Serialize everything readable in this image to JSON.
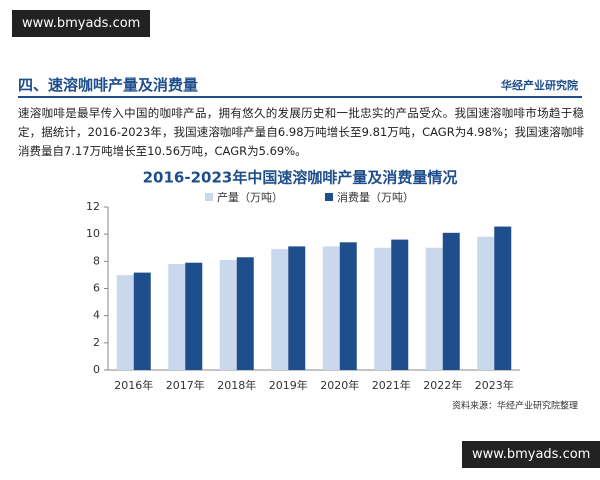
{
  "watermark_top": "www.bmyads.com",
  "watermark_bottom": "www.bmyads.com",
  "header": {
    "title": "四、速溶咖啡产量及消费量",
    "brand": "华经产业研究院"
  },
  "paragraph": "速溶咖啡是最早传入中国的咖啡产品，拥有悠久的发展历史和一批忠实的产品受众。我国速溶咖啡市场趋于稳定，据统计，2016-2023年，我国速溶咖啡产量自6.98万吨增长至9.81万吨，CAGR为4.98%；我国速溶咖啡消费量自7.17万吨增长至10.56万吨，CAGR为5.69%。",
  "chart_data": {
    "type": "bar",
    "title": "2016-2023年中国速溶咖啡产量及消费量情况",
    "categories": [
      "2016年",
      "2017年",
      "2018年",
      "2019年",
      "2020年",
      "2021年",
      "2022年",
      "2023年"
    ],
    "series": [
      {
        "name": "产量（万吨）",
        "color": "#c9d8ec",
        "values": [
          6.98,
          7.8,
          8.1,
          8.9,
          9.1,
          9.0,
          9.0,
          9.81
        ]
      },
      {
        "name": "消费量（万吨）",
        "color": "#1f4e8c",
        "values": [
          7.17,
          7.9,
          8.3,
          9.1,
          9.4,
          9.6,
          10.1,
          10.56
        ]
      }
    ],
    "ylim": [
      0,
      12
    ],
    "yticks": [
      0,
      2,
      4,
      6,
      8,
      10,
      12
    ],
    "source": "资料来源：华经产业研究院整理"
  }
}
